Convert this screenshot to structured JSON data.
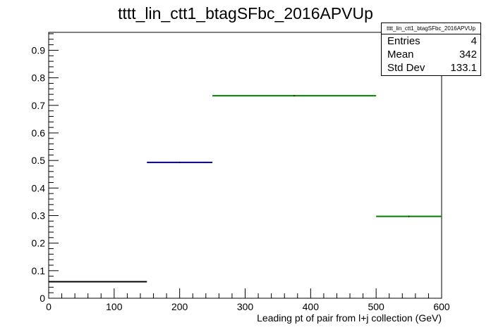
{
  "chart_data": {
    "type": "step",
    "title": "tttt_lin_ctt1_btagSFbc_2016APVUp",
    "xlabel": "Leading pt of pair from l+j collection (GeV)",
    "ylabel": "",
    "xlim": [
      0,
      600
    ],
    "ylim": [
      0,
      0.965
    ],
    "xticks": [
      0,
      100,
      200,
      300,
      400,
      500,
      600
    ],
    "yticks": [
      0,
      0.1,
      0.2,
      0.3,
      0.4,
      0.5,
      0.6,
      0.7,
      0.8,
      0.9
    ],
    "bins": [
      {
        "x0": 0,
        "x1": 150,
        "y": 0.06,
        "color": "#000000"
      },
      {
        "x0": 150,
        "x1": 250,
        "y": 0.493,
        "color": "#000080"
      },
      {
        "x0": 250,
        "x1": 500,
        "y": 0.735,
        "color": "#008000"
      },
      {
        "x0": 500,
        "x1": 600,
        "y": 0.297,
        "color": "#008000"
      }
    ],
    "grid": false,
    "legend": "none"
  },
  "stats": {
    "name": "tttt_lin_ctt1_btagSFbc_2016APVUp",
    "rows": [
      {
        "label": "Entries",
        "value": "4"
      },
      {
        "label": "Mean",
        "value": "342"
      },
      {
        "label": "Std Dev",
        "value": "133.1"
      }
    ]
  }
}
